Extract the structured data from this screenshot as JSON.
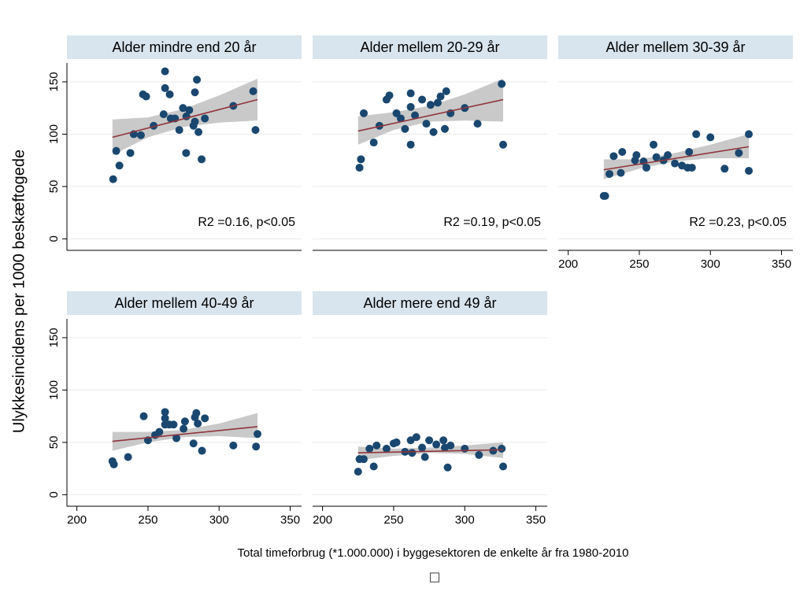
{
  "ylabel": "Ulykkesincidens per 1000 beskæftogede",
  "xlabel": "Total timeforbrug (*1.000.000) i byggesektoren de enkelte år fra 1980-2010",
  "footnote": "□",
  "chart_data": [
    {
      "type": "scatter",
      "title": "Alder mindre end 20 år",
      "annotation": "R2 =0.16, p<0.05",
      "x": [
        225.5,
        227.7,
        229.9,
        237.6,
        240,
        245,
        246.5,
        248.7,
        254,
        261,
        262,
        262,
        265.3,
        266,
        269,
        272,
        274.6,
        276.8,
        277,
        279,
        282,
        283,
        283,
        284.4,
        285.5,
        287.7,
        290,
        310,
        324,
        325.6
      ],
      "y": [
        57,
        84,
        70,
        82,
        100,
        99,
        138,
        136,
        108,
        119,
        160,
        144,
        138,
        115,
        115,
        104,
        125,
        82,
        117,
        123,
        108,
        140,
        112,
        152,
        102,
        76,
        115,
        127,
        141,
        104
      ],
      "color": "#1a476f",
      "fit": {
        "x": [
          225,
          327
        ],
        "y": [
          97,
          133
        ],
        "color": "#90353b"
      },
      "ci": {
        "x": [
          225,
          250,
          275,
          300,
          327
        ],
        "lower": [
          80,
          97,
          107,
          111,
          113
        ],
        "upper": [
          114,
          116,
          124,
          137,
          153
        ],
        "color": "#c0c0c0"
      },
      "xlim": [
        193,
        358
      ],
      "ylim": [
        -11,
        168
      ],
      "xticks": [
        200,
        250,
        300,
        350
      ],
      "yticks": [
        0,
        50,
        100,
        150
      ],
      "show_xticks": false,
      "show_yticks": true,
      "grid": true
    },
    {
      "type": "scatter",
      "title": "Alder mellem 20-29 år",
      "annotation": "R2 =0.19, p<0.05",
      "x": [
        226,
        227,
        229,
        236,
        240,
        245,
        247,
        252,
        255,
        258,
        262,
        262,
        262,
        265,
        270,
        273,
        276,
        278,
        281,
        283,
        286,
        287,
        290,
        300,
        309,
        326,
        327
      ],
      "y": [
        68,
        76,
        120,
        92,
        108,
        133,
        137,
        120,
        115,
        105,
        90,
        126,
        139,
        118,
        133,
        110,
        128,
        102,
        130,
        136,
        105,
        141,
        120,
        125,
        110,
        148,
        90
      ],
      "color": "#1a476f",
      "fit": {
        "x": [
          225,
          327
        ],
        "y": [
          103,
          133
        ],
        "color": "#90353b"
      },
      "ci": {
        "x": [
          225,
          250,
          275,
          300,
          327
        ],
        "lower": [
          90,
          104,
          112,
          113,
          112
        ],
        "upper": [
          117,
          121,
          127,
          138,
          153
        ],
        "color": "#c0c0c0"
      },
      "xlim": [
        193,
        358
      ],
      "ylim": [
        -11,
        168
      ],
      "xticks": [
        200,
        250,
        300,
        350
      ],
      "yticks": [
        0,
        50,
        100,
        150
      ],
      "show_xticks": false,
      "show_yticks": false,
      "grid": true
    },
    {
      "type": "scatter",
      "title": "Alder mellem 30-39 år",
      "annotation": "R2 =0.23, p<0.05",
      "x": [
        225,
        226,
        229,
        232,
        237,
        238,
        247,
        248,
        253,
        255,
        260,
        262,
        267,
        270,
        275,
        280,
        284,
        285,
        287,
        290,
        300,
        310,
        320,
        327,
        327
      ],
      "y": [
        41,
        41,
        62,
        79,
        63,
        83,
        75,
        80,
        74,
        68,
        90,
        78,
        75,
        80,
        72,
        70,
        68,
        83,
        68,
        100,
        97,
        67,
        82,
        100,
        65
      ],
      "color": "#1a476f",
      "fit": {
        "x": [
          225,
          327
        ],
        "y": [
          66,
          88
        ],
        "color": "#90353b"
      },
      "ci": {
        "x": [
          225,
          250,
          275,
          300,
          327
        ],
        "lower": [
          57,
          67,
          74,
          77,
          77
        ],
        "upper": [
          76,
          76,
          82,
          90,
          100
        ],
        "color": "#c0c0c0"
      },
      "xlim": [
        193,
        358
      ],
      "ylim": [
        -11,
        168
      ],
      "xticks": [
        200,
        250,
        300,
        350
      ],
      "yticks": [
        0,
        50,
        100,
        150
      ],
      "show_xticks": true,
      "show_yticks": false,
      "grid": true
    },
    {
      "type": "scatter",
      "title": "Alder mellem 40-49 år",
      "x": [
        225,
        226,
        236,
        247,
        250,
        255,
        258,
        262,
        262,
        262,
        265,
        268,
        270,
        275,
        276,
        282,
        283,
        284,
        285,
        288,
        290,
        310,
        326,
        327
      ],
      "y": [
        32,
        29,
        36,
        75,
        52,
        57,
        60,
        67,
        73,
        79,
        67,
        67,
        54,
        63,
        70,
        49,
        74,
        78,
        68,
        42,
        73,
        47,
        46,
        58
      ],
      "color": "#1a476f",
      "fit": {
        "x": [
          225,
          327
        ],
        "y": [
          51,
          65
        ],
        "color": "#90353b"
      },
      "ci": {
        "x": [
          225,
          250,
          275,
          300,
          327
        ],
        "lower": [
          42,
          50,
          55,
          56,
          54
        ],
        "upper": [
          60,
          60,
          62,
          68,
          78
        ],
        "color": "#c0c0c0"
      },
      "xlim": [
        193,
        358
      ],
      "ylim": [
        -11,
        168
      ],
      "xticks": [
        200,
        250,
        300,
        350
      ],
      "yticks": [
        0,
        50,
        100,
        150
      ],
      "show_xticks": true,
      "show_yticks": true,
      "grid": true
    },
    {
      "type": "scatter",
      "title": "Alder mere end 49 år",
      "x": [
        225,
        226,
        229,
        233,
        236,
        238,
        245,
        250,
        252,
        258,
        262,
        263,
        266,
        270,
        272,
        275,
        280,
        285,
        286,
        288,
        290,
        300,
        310,
        320,
        326,
        327
      ],
      "y": [
        22,
        34,
        34,
        44,
        27,
        47,
        44,
        49,
        50,
        41,
        52,
        40,
        55,
        45,
        36,
        52,
        48,
        52,
        45,
        26,
        47,
        44,
        38,
        42,
        44,
        27
      ],
      "color": "#1a476f",
      "fit": {
        "x": [
          225,
          327
        ],
        "y": [
          40,
          43
        ],
        "color": "#90353b"
      },
      "ci": {
        "x": [
          225,
          250,
          275,
          300,
          327
        ],
        "lower": [
          33,
          37,
          40,
          39,
          35
        ],
        "upper": [
          46,
          44,
          45,
          47,
          50
        ],
        "color": "#c0c0c0"
      },
      "xlim": [
        193,
        358
      ],
      "ylim": [
        -11,
        168
      ],
      "xticks": [
        200,
        250,
        300,
        350
      ],
      "yticks": [
        0,
        50,
        100,
        150
      ],
      "show_xticks": true,
      "show_yticks": false,
      "grid": true
    }
  ]
}
